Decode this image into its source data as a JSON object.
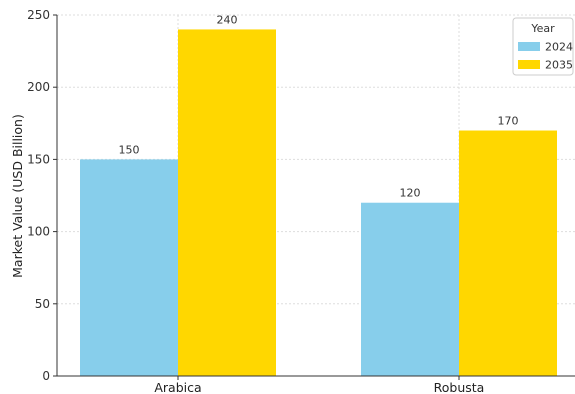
{
  "chart_data": {
    "type": "bar",
    "categories": [
      "Arabica",
      "Robusta"
    ],
    "series": [
      {
        "name": "2024",
        "values": [
          150,
          120
        ],
        "color": "#87CEEB"
      },
      {
        "name": "2035",
        "values": [
          240,
          170
        ],
        "color": "#FFD700"
      }
    ],
    "ylabel": "Market Value (USD Billion)",
    "xlabel": "",
    "ylim": [
      0,
      250
    ],
    "yticks": [
      0,
      50,
      100,
      150,
      200,
      250
    ],
    "grid": true,
    "legend": {
      "title": "Year",
      "placement": "top-right"
    }
  }
}
